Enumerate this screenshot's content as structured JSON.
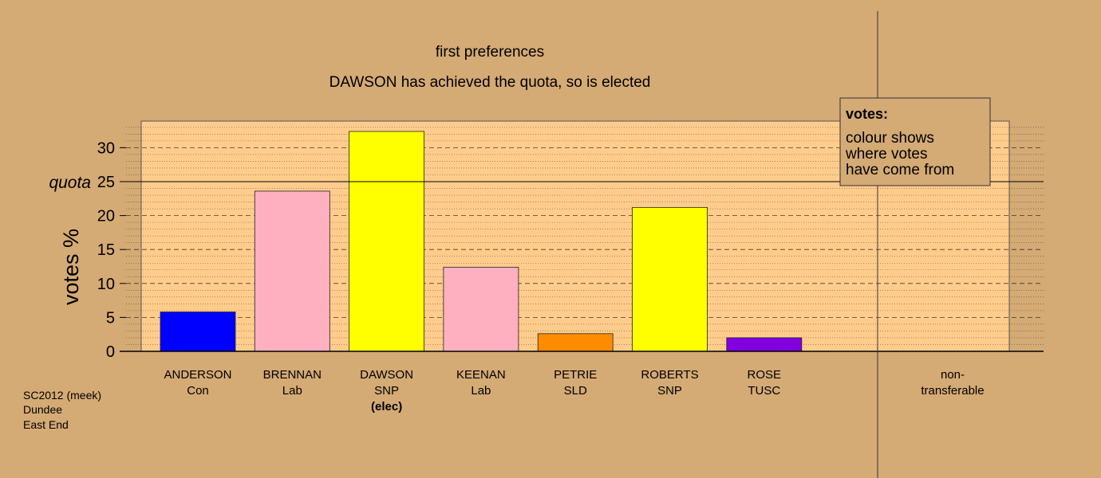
{
  "chart_data": {
    "type": "bar",
    "title": "first preferences",
    "subtitle": "DAWSON has achieved the quota, so is elected",
    "ylabel": "votes %",
    "ylim": [
      0,
      34
    ],
    "yticks": [
      0,
      5,
      10,
      15,
      20,
      25,
      30
    ],
    "quota": 25,
    "quota_label": "quota",
    "grid": true,
    "categories": [
      {
        "name": "ANDERSON",
        "party": "Con",
        "note": "",
        "value": 5.8,
        "color": "#0000ff"
      },
      {
        "name": "BRENNAN",
        "party": "Lab",
        "note": "",
        "value": 23.6,
        "color": "#ffb0c0"
      },
      {
        "name": "DAWSON",
        "party": "SNP",
        "note": "(elec)",
        "value": 32.4,
        "color": "#ffff00"
      },
      {
        "name": "KEENAN",
        "party": "Lab",
        "note": "",
        "value": 12.4,
        "color": "#ffb0c0"
      },
      {
        "name": "PETRIE",
        "party": "SLD",
        "note": "",
        "value": 2.6,
        "color": "#ff8c00"
      },
      {
        "name": "ROBERTS",
        "party": "SNP",
        "note": "",
        "value": 21.2,
        "color": "#ffff00"
      },
      {
        "name": "ROSE",
        "party": "TUSC",
        "note": "",
        "value": 2.0,
        "color": "#8000e0"
      }
    ],
    "nontransferable": {
      "line1": "non-",
      "line2": "transferable",
      "value": 0
    },
    "legend": {
      "title": "votes:",
      "lines": [
        "colour shows",
        "where votes",
        "have come from"
      ],
      "position": "top-right"
    },
    "footnote": [
      "SC2012 (meek)",
      "Dundee",
      "East End"
    ]
  }
}
